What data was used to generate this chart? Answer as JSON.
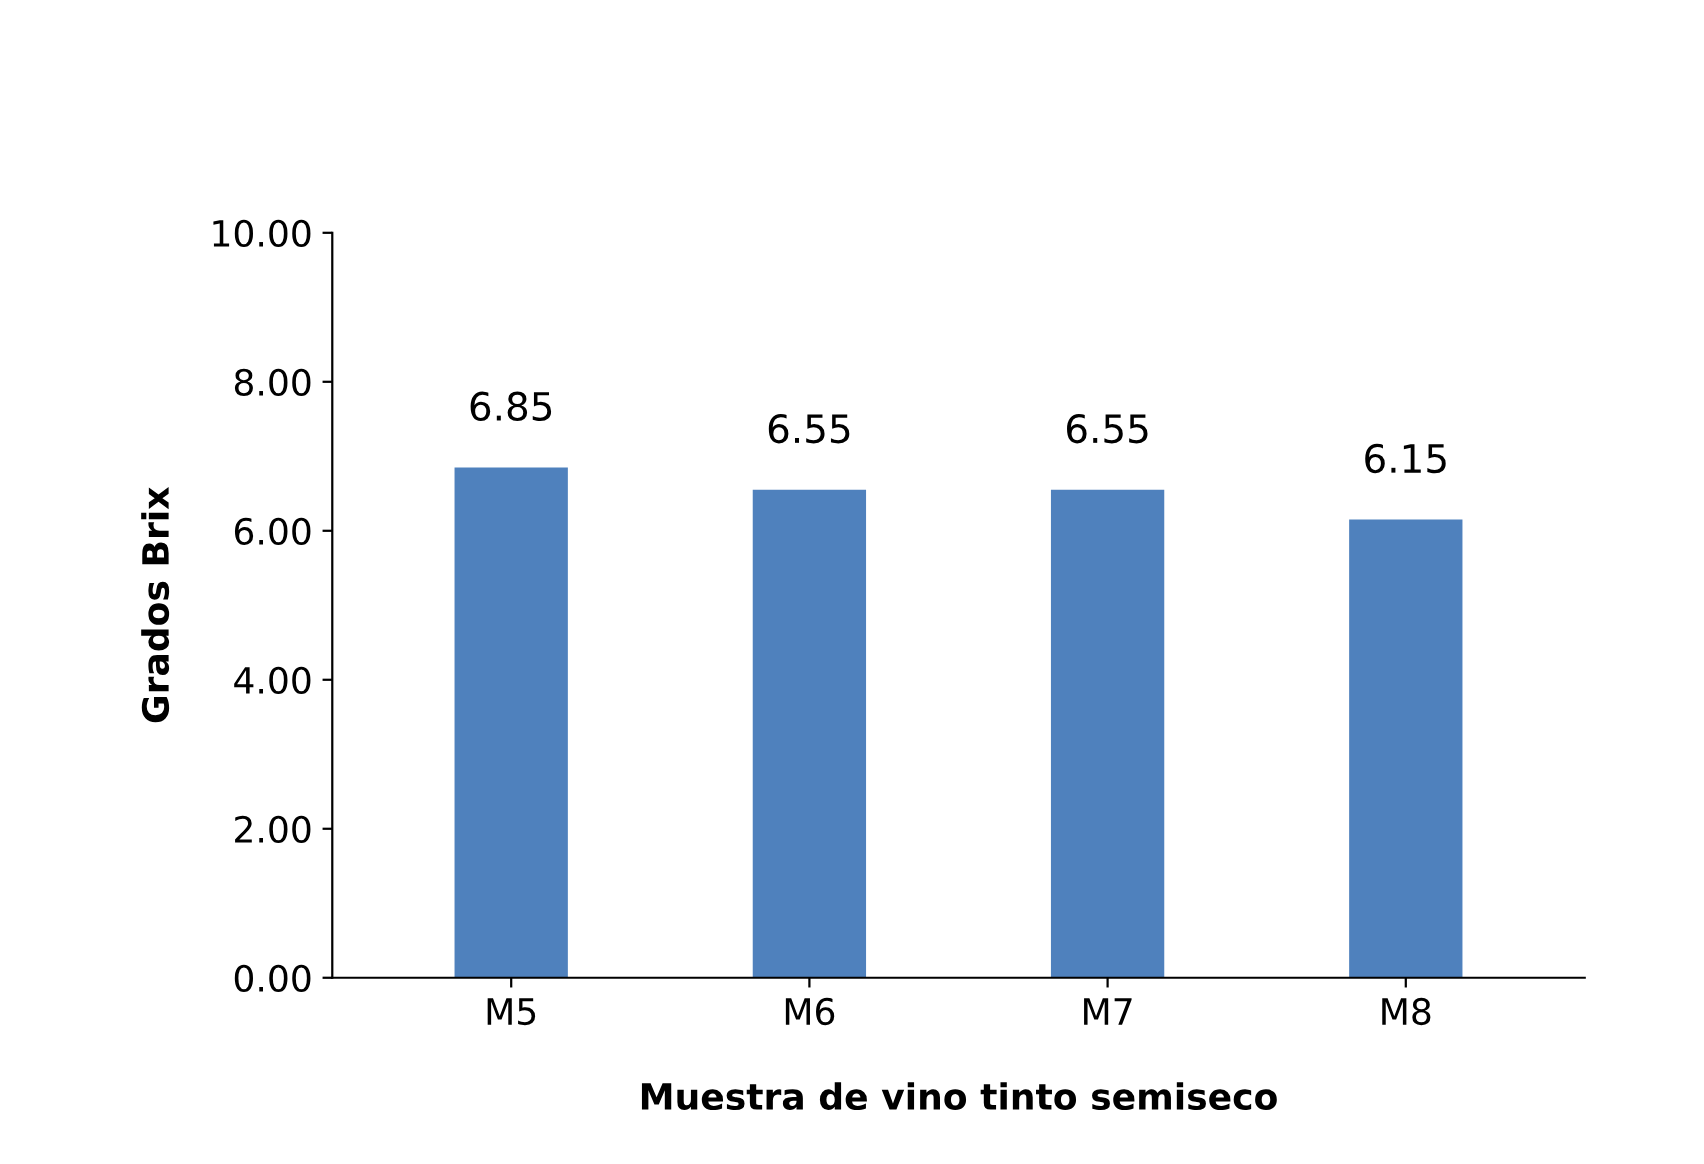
{
  "chart_data": {
    "type": "bar",
    "xlabel": "Muestra de vino tinto semiseco",
    "ylabel": "Grados Brix",
    "categories": [
      "M5",
      "M6",
      "M7",
      "M8"
    ],
    "values": [
      6.85,
      6.55,
      6.55,
      6.15
    ],
    "color": "#4f81bd",
    "ylim": [
      0,
      10
    ],
    "yticks": [
      {
        "value": 0,
        "label": "0.00"
      },
      {
        "value": 2,
        "label": "2.00"
      },
      {
        "value": 4,
        "label": "4.00"
      },
      {
        "value": 6,
        "label": "6.00"
      },
      {
        "value": 8,
        "label": "8.00"
      },
      {
        "value": 10,
        "label": "10.00"
      }
    ],
    "data_labels": true,
    "grid": false,
    "legend": false
  }
}
